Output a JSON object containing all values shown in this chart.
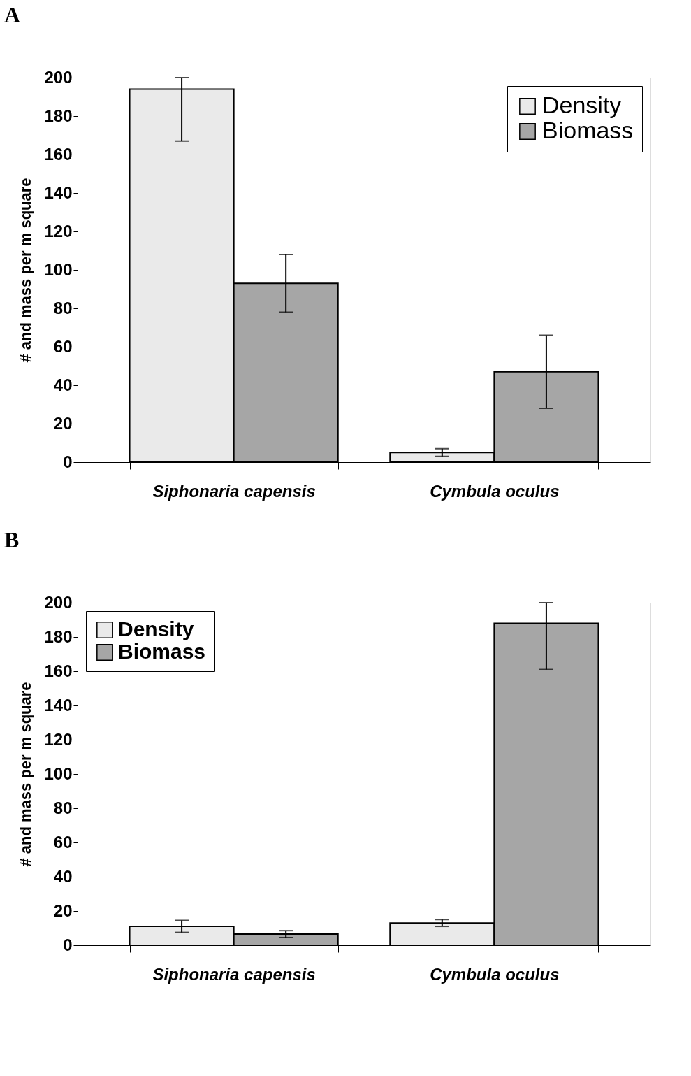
{
  "chart_data": [
    {
      "type": "bar",
      "title": "A",
      "categories": [
        "Siphonaria capensis",
        "Cymbula oculus"
      ],
      "ylabel": "# and mass per m square",
      "series": [
        {
          "name": "Density",
          "color": "#eaeaea",
          "values": [
            194,
            5
          ],
          "errors": [
            [
              167,
              200
            ],
            2
          ]
        },
        {
          "name": "Biomass",
          "color": "#a6a6a6",
          "values": [
            93,
            47
          ],
          "errors": [
            15,
            19
          ]
        }
      ],
      "ylim": [
        0,
        200
      ],
      "yticks": [
        0,
        20,
        40,
        60,
        80,
        100,
        120,
        140,
        160,
        180,
        200
      ],
      "legend": "top right",
      "grid": false
    },
    {
      "type": "bar",
      "title": "B",
      "categories": [
        "Siphonaria capensis",
        "Cymbula oculus"
      ],
      "ylabel": "# and mass per m square",
      "series": [
        {
          "name": "Density",
          "color": "#eaeaea",
          "values": [
            11,
            13
          ],
          "errors": [
            3.5,
            2
          ]
        },
        {
          "name": "Biomass",
          "color": "#a6a6a6",
          "values": [
            6.5,
            188
          ],
          "errors": [
            2,
            [
              161,
              200
            ]
          ]
        }
      ],
      "ylim": [
        0,
        200
      ],
      "yticks": [
        0,
        20,
        40,
        60,
        80,
        100,
        120,
        140,
        160,
        180,
        200
      ],
      "legend": "top left",
      "grid": false
    }
  ]
}
